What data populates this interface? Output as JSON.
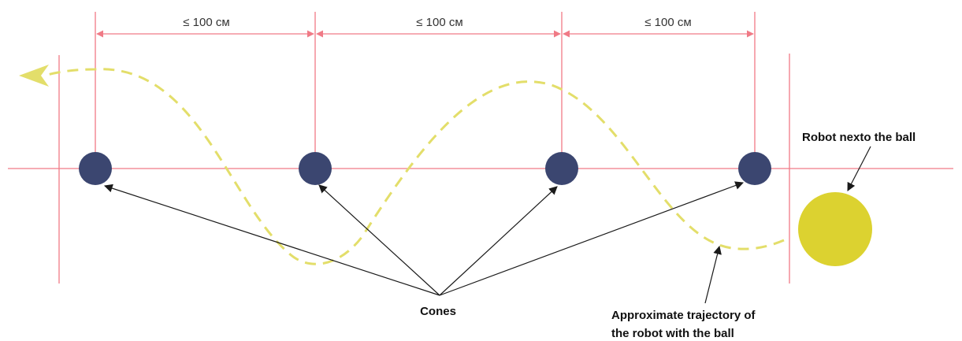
{
  "dimensions": {
    "labels": [
      "≤ 100 см",
      "≤ 100 см",
      "≤ 100 см"
    ]
  },
  "callouts": {
    "robot_label": "Robot nexto the ball",
    "cones_label": "Cones",
    "trajectory_label_line1": "Approximate trajectory of",
    "trajectory_label_line2": "the robot with the ball"
  },
  "colors": {
    "guide_lines": "#f07a86",
    "cone": "#3b4670",
    "ball": "#dcd230",
    "trajectory": "#e3de6a",
    "pointer_arrows": "#1a1a1a"
  }
}
